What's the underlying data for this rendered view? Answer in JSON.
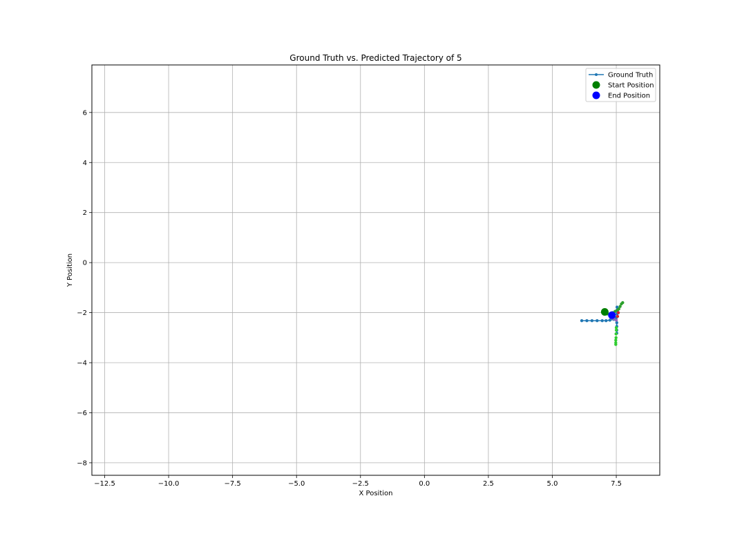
{
  "chart_data": {
    "type": "scatter",
    "title": "Ground Truth vs. Predicted Trajectory of 5",
    "xlabel": "X Position",
    "ylabel": "Y Position",
    "xlim": [
      -13.0,
      9.2
    ],
    "ylim": [
      -8.5,
      7.9
    ],
    "xticks": [
      -12.5,
      -10.0,
      -7.5,
      -5.0,
      -2.5,
      0.0,
      2.5,
      5.0,
      7.5
    ],
    "xtick_labels": [
      "−12.5",
      "−10.0",
      "−7.5",
      "−5.0",
      "−2.5",
      "0.0",
      "2.5",
      "5.0",
      "7.5"
    ],
    "yticks": [
      -8,
      -6,
      -4,
      -2,
      0,
      2,
      4,
      6
    ],
    "ytick_labels": [
      "−8",
      "−6",
      "−4",
      "−2",
      "0",
      "2",
      "4",
      "6"
    ],
    "grid": true,
    "legend_position": "top-right",
    "legend": [
      {
        "label": "Ground Truth",
        "kind": "line-marker",
        "color": "#1f77b4"
      },
      {
        "label": "Start Position",
        "kind": "marker",
        "color": "#008000"
      },
      {
        "label": "End Position",
        "kind": "marker",
        "color": "#0000ff"
      }
    ],
    "series": [
      {
        "name": "Ground Truth",
        "color": "#1f77b4",
        "style": "line-marker",
        "x": [
          6.15,
          6.35,
          6.55,
          6.75,
          6.95,
          7.1,
          7.25,
          7.4,
          7.5,
          7.53,
          7.53,
          7.53,
          7.52,
          7.52,
          7.52,
          7.52
        ],
        "y": [
          -2.32,
          -2.32,
          -2.32,
          -2.32,
          -2.32,
          -2.32,
          -2.3,
          -2.27,
          -2.2,
          -2.05,
          -1.9,
          -1.78,
          -2.4,
          -2.55,
          -2.7,
          -2.82
        ]
      },
      {
        "color": "#2ca02c",
        "style": "line-marker",
        "x": [
          7.05,
          7.15,
          7.25,
          7.35,
          7.45,
          7.55,
          7.6,
          7.65,
          7.7,
          7.75
        ],
        "y": [
          -2.0,
          -2.05,
          -2.05,
          -2.0,
          -1.95,
          -1.9,
          -1.85,
          -1.75,
          -1.65,
          -1.6
        ]
      },
      {
        "color": "#32cd32",
        "style": "marker",
        "x": [
          7.5,
          7.5,
          7.49,
          7.49,
          7.48,
          7.48,
          7.48
        ],
        "y": [
          -2.6,
          -2.7,
          -2.85,
          -3.0,
          -3.1,
          -3.2,
          -3.27
        ]
      },
      {
        "color": "#9467bd",
        "style": "line-marker",
        "x": [
          7.3,
          7.4,
          7.5
        ],
        "y": [
          -2.2,
          -2.25,
          -2.3
        ]
      },
      {
        "color": "#d62728",
        "style": "marker",
        "x": [
          7.55,
          7.58
        ],
        "y": [
          -2.15,
          -2.0
        ]
      }
    ],
    "start_position": {
      "x": 7.05,
      "y": -1.97,
      "color": "#008000"
    },
    "end_position": {
      "x": 7.33,
      "y": -2.1,
      "color": "#0000ff"
    }
  }
}
